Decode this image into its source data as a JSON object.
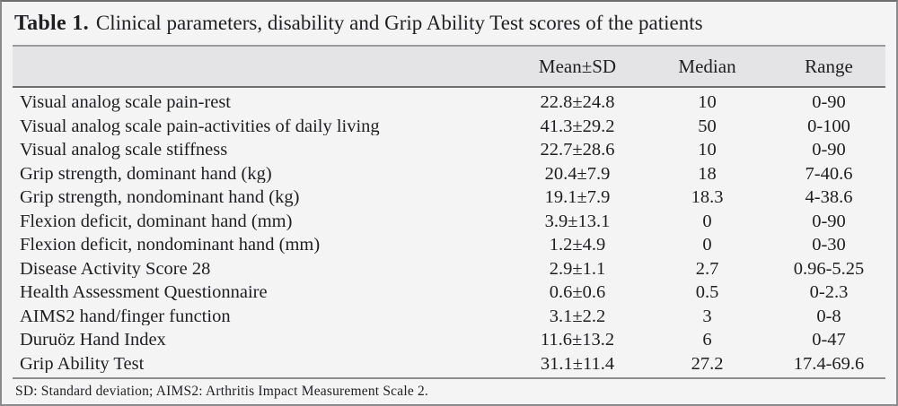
{
  "colors": {
    "outer_border": "#8a8a8d",
    "background": "#f4f4f5",
    "header_band": "#e4e4e6",
    "rule_dark": "#6f6f72",
    "rule_light": "#9b9b9e",
    "text": "#1f1f21"
  },
  "table": {
    "title_label": "Table 1.",
    "title_text": "Clinical parameters, disability and Grip Ability Test scores of the patients",
    "columns": [
      "Mean±SD",
      "Median",
      "Range"
    ],
    "rows": [
      {
        "parameter": "Visual analog scale pain-rest",
        "mean_sd": "22.8±24.8",
        "median": "10",
        "range": "0-90"
      },
      {
        "parameter": "Visual analog scale pain-activities of daily living",
        "mean_sd": "41.3±29.2",
        "median": "50",
        "range": "0-100"
      },
      {
        "parameter": "Visual analog scale stiffness",
        "mean_sd": "22.7±28.6",
        "median": "10",
        "range": "0-90"
      },
      {
        "parameter": "Grip strength, dominant hand (kg)",
        "mean_sd": "20.4±7.9",
        "median": "18",
        "range": "7-40.6"
      },
      {
        "parameter": "Grip strength, nondominant hand (kg)",
        "mean_sd": "19.1±7.9",
        "median": "18.3",
        "range": "4-38.6"
      },
      {
        "parameter": "Flexion deficit, dominant hand (mm)",
        "mean_sd": "3.9±13.1",
        "median": "0",
        "range": "0-90"
      },
      {
        "parameter": "Flexion deficit, nondominant hand (mm)",
        "mean_sd": "1.2±4.9",
        "median": "0",
        "range": "0-30"
      },
      {
        "parameter": "Disease Activity Score 28",
        "mean_sd": "2.9±1.1",
        "median": "2.7",
        "range": "0.96-5.25"
      },
      {
        "parameter": "Health Assessment Questionnaire",
        "mean_sd": "0.6±0.6",
        "median": "0.5",
        "range": "0-2.3"
      },
      {
        "parameter": "AIMS2 hand/finger function",
        "mean_sd": "3.1±2.2",
        "median": "3",
        "range": "0-8"
      },
      {
        "parameter": "Duruöz Hand Index",
        "mean_sd": "11.6±13.2",
        "median": "6",
        "range": "0-47"
      },
      {
        "parameter": "Grip Ability Test",
        "mean_sd": "31.1±11.4",
        "median": "27.2",
        "range": "17.4-69.6"
      }
    ],
    "footnote": "SD: Standard deviation; AIMS2: Arthritis Impact Measurement Scale 2."
  }
}
